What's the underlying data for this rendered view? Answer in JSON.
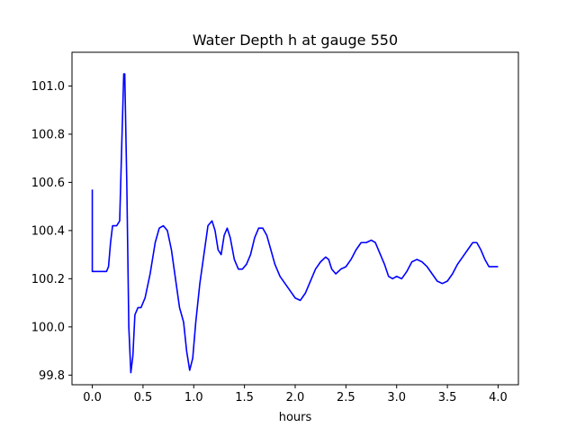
{
  "chart_data": {
    "type": "line",
    "title": "Water Depth h at gauge 550",
    "xlabel": "hours",
    "ylabel": "",
    "xlim": [
      -0.2,
      4.2
    ],
    "ylim": [
      99.76,
      101.14
    ],
    "grid": false,
    "xticks": [
      0.0,
      0.5,
      1.0,
      1.5,
      2.0,
      2.5,
      3.0,
      3.5,
      4.0
    ],
    "xtick_labels": [
      "0.0",
      "0.5",
      "1.0",
      "1.5",
      "2.0",
      "2.5",
      "3.0",
      "3.5",
      "4.0"
    ],
    "yticks": [
      99.8,
      100.0,
      100.2,
      100.4,
      100.6,
      100.8,
      101.0
    ],
    "ytick_labels": [
      "99.8",
      "100.0",
      "100.2",
      "100.4",
      "100.6",
      "100.8",
      "101.0"
    ],
    "line_color": "#0000ff",
    "series": [
      {
        "points": [
          [
            0.0,
            100.57
          ],
          [
            0.0,
            100.23
          ],
          [
            0.05,
            100.23
          ],
          [
            0.1,
            100.23
          ],
          [
            0.14,
            100.23
          ],
          [
            0.16,
            100.25
          ],
          [
            0.18,
            100.35
          ],
          [
            0.2,
            100.42
          ],
          [
            0.22,
            100.42
          ],
          [
            0.24,
            100.42
          ],
          [
            0.27,
            100.44
          ],
          [
            0.29,
            100.75
          ],
          [
            0.31,
            101.05
          ],
          [
            0.32,
            101.05
          ],
          [
            0.34,
            100.6
          ],
          [
            0.36,
            100.0
          ],
          [
            0.38,
            99.81
          ],
          [
            0.4,
            99.88
          ],
          [
            0.42,
            100.05
          ],
          [
            0.45,
            100.08
          ],
          [
            0.48,
            100.08
          ],
          [
            0.52,
            100.12
          ],
          [
            0.57,
            100.22
          ],
          [
            0.62,
            100.35
          ],
          [
            0.66,
            100.41
          ],
          [
            0.7,
            100.42
          ],
          [
            0.74,
            100.4
          ],
          [
            0.78,
            100.32
          ],
          [
            0.82,
            100.2
          ],
          [
            0.86,
            100.08
          ],
          [
            0.9,
            100.02
          ],
          [
            0.93,
            99.9
          ],
          [
            0.96,
            99.82
          ],
          [
            0.99,
            99.87
          ],
          [
            1.02,
            100.02
          ],
          [
            1.06,
            100.18
          ],
          [
            1.1,
            100.3
          ],
          [
            1.14,
            100.42
          ],
          [
            1.18,
            100.44
          ],
          [
            1.21,
            100.4
          ],
          [
            1.24,
            100.32
          ],
          [
            1.27,
            100.3
          ],
          [
            1.3,
            100.38
          ],
          [
            1.33,
            100.41
          ],
          [
            1.36,
            100.37
          ],
          [
            1.4,
            100.28
          ],
          [
            1.44,
            100.24
          ],
          [
            1.48,
            100.24
          ],
          [
            1.52,
            100.26
          ],
          [
            1.56,
            100.3
          ],
          [
            1.6,
            100.37
          ],
          [
            1.64,
            100.41
          ],
          [
            1.68,
            100.41
          ],
          [
            1.72,
            100.38
          ],
          [
            1.76,
            100.32
          ],
          [
            1.8,
            100.26
          ],
          [
            1.85,
            100.21
          ],
          [
            1.9,
            100.18
          ],
          [
            1.95,
            100.15
          ],
          [
            2.0,
            100.12
          ],
          [
            2.05,
            100.11
          ],
          [
            2.1,
            100.14
          ],
          [
            2.15,
            100.19
          ],
          [
            2.2,
            100.24
          ],
          [
            2.25,
            100.27
          ],
          [
            2.3,
            100.29
          ],
          [
            2.33,
            100.28
          ],
          [
            2.36,
            100.24
          ],
          [
            2.4,
            100.22
          ],
          [
            2.45,
            100.24
          ],
          [
            2.5,
            100.25
          ],
          [
            2.55,
            100.28
          ],
          [
            2.6,
            100.32
          ],
          [
            2.65,
            100.35
          ],
          [
            2.7,
            100.35
          ],
          [
            2.75,
            100.36
          ],
          [
            2.79,
            100.35
          ],
          [
            2.83,
            100.31
          ],
          [
            2.88,
            100.26
          ],
          [
            2.92,
            100.21
          ],
          [
            2.96,
            100.2
          ],
          [
            3.0,
            100.21
          ],
          [
            3.05,
            100.2
          ],
          [
            3.1,
            100.23
          ],
          [
            3.15,
            100.27
          ],
          [
            3.2,
            100.28
          ],
          [
            3.25,
            100.27
          ],
          [
            3.3,
            100.25
          ],
          [
            3.35,
            100.22
          ],
          [
            3.4,
            100.19
          ],
          [
            3.45,
            100.18
          ],
          [
            3.5,
            100.19
          ],
          [
            3.55,
            100.22
          ],
          [
            3.6,
            100.26
          ],
          [
            3.65,
            100.29
          ],
          [
            3.7,
            100.32
          ],
          [
            3.75,
            100.35
          ],
          [
            3.79,
            100.35
          ],
          [
            3.83,
            100.32
          ],
          [
            3.87,
            100.28
          ],
          [
            3.91,
            100.25
          ],
          [
            3.95,
            100.25
          ],
          [
            4.0,
            100.25
          ]
        ]
      }
    ]
  }
}
